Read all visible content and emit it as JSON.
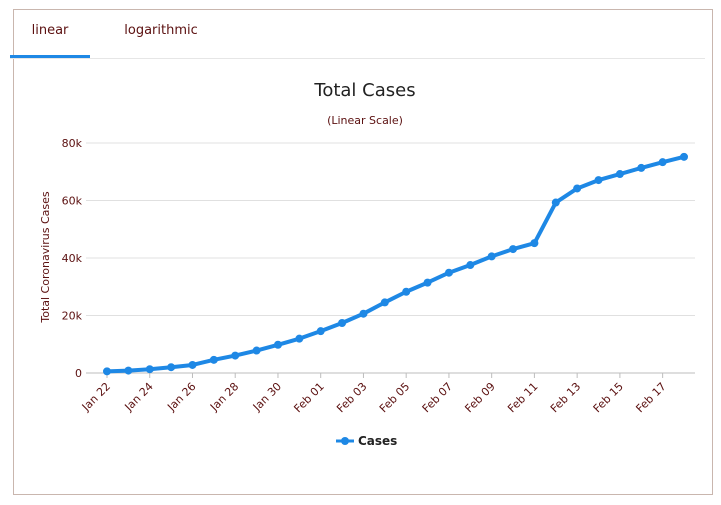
{
  "tabs": [
    {
      "label": "linear",
      "active": true
    },
    {
      "label": "logarithmic",
      "active": false
    }
  ],
  "colors": {
    "accent": "#1e88e5",
    "series": "#1e88e5",
    "text": "#5b1010"
  },
  "chart_data": {
    "type": "line",
    "title": "Total Cases",
    "subtitle": "(Linear Scale)",
    "ylabel": "Total Coronavirus Cases",
    "xlabel": "",
    "ylim": [
      0,
      80000
    ],
    "yticks": [
      0,
      20000,
      40000,
      60000,
      80000
    ],
    "ytick_labels": [
      "0",
      "20k",
      "40k",
      "60k",
      "80k"
    ],
    "x": [
      "Jan 22",
      "Jan 23",
      "Jan 24",
      "Jan 25",
      "Jan 26",
      "Jan 27",
      "Jan 28",
      "Jan 29",
      "Jan 30",
      "Jan 31",
      "Feb 01",
      "Feb 02",
      "Feb 03",
      "Feb 04",
      "Feb 05",
      "Feb 06",
      "Feb 07",
      "Feb 08",
      "Feb 09",
      "Feb 10",
      "Feb 11",
      "Feb 12",
      "Feb 13",
      "Feb 14",
      "Feb 15",
      "Feb 16",
      "Feb 17",
      "Feb 18"
    ],
    "xtick_labels": [
      "Jan 22",
      "Jan 24",
      "Jan 26",
      "Jan 28",
      "Jan 30",
      "Feb 01",
      "Feb 03",
      "Feb 05",
      "Feb 07",
      "Feb 09",
      "Feb 11",
      "Feb 13",
      "Feb 15",
      "Feb 17"
    ],
    "series": [
      {
        "name": "Cases",
        "values": [
          580,
          845,
          1317,
          2015,
          2800,
          4581,
          6058,
          7813,
          9823,
          11950,
          14553,
          17391,
          20630,
          24545,
          28266,
          31439,
          34876,
          37552,
          40553,
          43099,
          45170,
          59283,
          64180,
          67100,
          69197,
          71329,
          73332,
          75184
        ]
      }
    ],
    "grid": true,
    "legend": "bottom-center"
  }
}
